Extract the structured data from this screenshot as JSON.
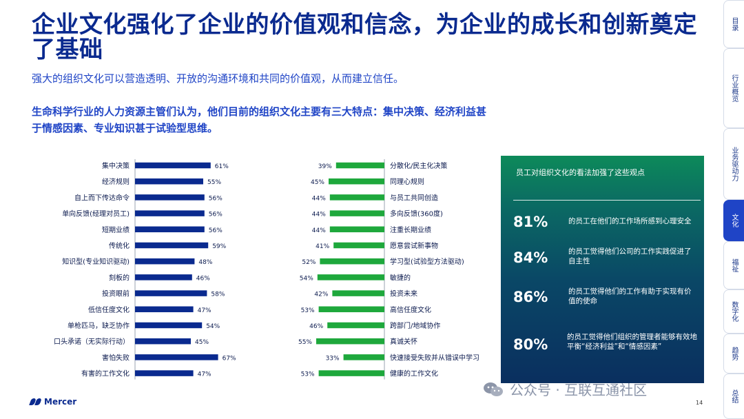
{
  "title": "企业文化强化了企业的价值观和信念，为企业的成长和创新奠定了基础",
  "subtitle": "强大的组织文化可以营造透明、开放的沟通环境和共同的价值观，从而建立信任。",
  "intro": "生命科学行业的人力资源主管们认为，他们目前的组织文化主要有三大特点：集中决策、经济利益甚于情感因素、专业知识甚于试验型思维。",
  "side_tabs": [
    "目录",
    "行业概览",
    "业务驱动力",
    "文化",
    "福祉",
    "数字化",
    "趋势",
    "总结"
  ],
  "active_tab": "文化",
  "chart_data": [
    {
      "type": "bar",
      "orientation": "horizontal",
      "color": "#0a2a8f",
      "categories": [
        "集中决策",
        "经济规则",
        "自上而下传达命令",
        "单向反馈(经理对员工)",
        "短期业绩",
        "传统化",
        "知识型(专业知识驱动)",
        "刻板的",
        "投资眼前",
        "低信任度文化",
        "单枪匹马，缺乏协作",
        "口头承诺（无实际行动）",
        "害怕失败",
        "有害的工作文化"
      ],
      "values": [
        61,
        55,
        56,
        56,
        56,
        59,
        48,
        46,
        58,
        47,
        54,
        45,
        67,
        47
      ],
      "value_labels": [
        "61%",
        "55%",
        "56%",
        "56%",
        "56%",
        "59%",
        "48%",
        "46%",
        "58%",
        "47%",
        "54%",
        "45%",
        "67%",
        "47%"
      ]
    },
    {
      "type": "bar",
      "orientation": "horizontal",
      "direction": "right-to-left",
      "color": "#1ea83c",
      "categories": [
        "分散化/民主化决策",
        "同理心规则",
        "与员工共同创造",
        "多向反馈(360度)",
        "注重长期业绩",
        "愿意尝试新事物",
        "学习型(试验型方法驱动)",
        "敏捷的",
        "投资未来",
        "高信任度文化",
        "跨部门/地域协作",
        "真诚关怀",
        "快速接受失败并从错误中学习",
        "健康的工作文化"
      ],
      "values": [
        39,
        45,
        44,
        44,
        44,
        41,
        52,
        54,
        42,
        53,
        46,
        55,
        33,
        53
      ],
      "value_labels": [
        "39%",
        "45%",
        "44%",
        "44%",
        "44%",
        "41%",
        "52%",
        "54%",
        "42%",
        "53%",
        "46%",
        "55%",
        "33%",
        "53%"
      ]
    }
  ],
  "panel": {
    "heading": "员工对组织文化的看法加强了这些观点",
    "stats": [
      {
        "pct": "81%",
        "text": "的员工在他们的工作场所感到心理安全"
      },
      {
        "pct": "84%",
        "text": "的员工觉得他们公司的工作实践促进了自主性"
      },
      {
        "pct": "86%",
        "text": "的员工觉得他们的工作有助于实现有价值的使命"
      },
      {
        "pct": "80%",
        "text": "的员工觉得他们组织的管理者能够有效地平衡“经济利益”和“情感因素”"
      }
    ]
  },
  "footer": {
    "logo": "Mercer",
    "page": "14",
    "watermark": "公众号 · 互联互通社区"
  }
}
